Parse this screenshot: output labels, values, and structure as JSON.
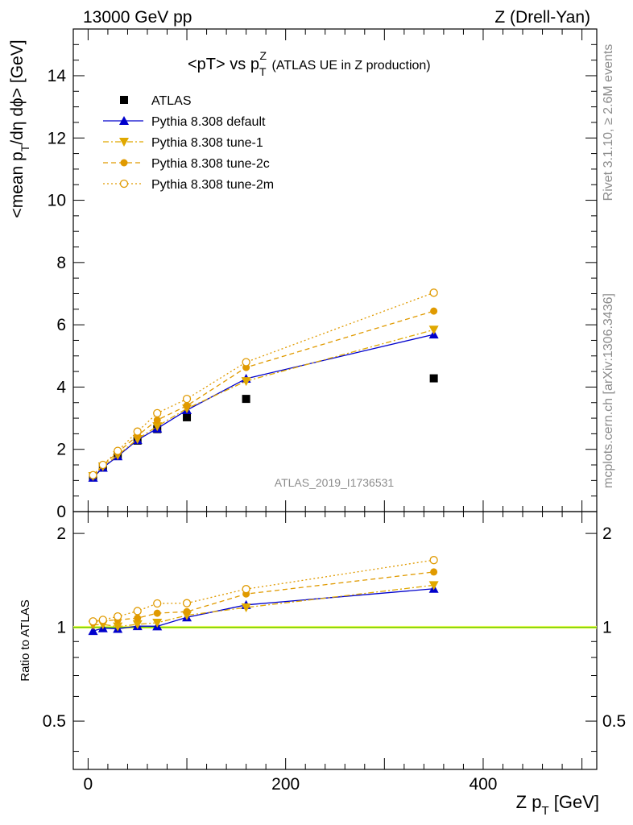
{
  "header": {
    "left": "13000 GeV pp",
    "right": "Z (Drell-Yan)"
  },
  "side": {
    "rivet": "Rivet 3.1.10, ≥ 2.6M events",
    "mcplots": "mcplots.cern.ch [arXiv:1306.3436]"
  },
  "main": {
    "title_prefix": "<pT> vs p",
    "title_sub": "T",
    "title_sup": "Z",
    "title_suffix": " (ATLAS UE in Z production)",
    "ylabel_a": "<mean p",
    "ylabel_sub": "T",
    "ylabel_b": "/dη dϕ> [GeV]",
    "analysis_id": "ATLAS_2019_I1736531",
    "y_ticks": [
      "0",
      "2",
      "4",
      "6",
      "8",
      "10",
      "12",
      "14"
    ]
  },
  "ratio": {
    "ylabel": "Ratio to ATLAS",
    "y_ticks": [
      "0.5",
      "1",
      "2"
    ]
  },
  "xaxis": {
    "label_a": "Z p",
    "label_sub": "T",
    "label_b": " [GeV]",
    "ticks": [
      "0",
      "200",
      "400"
    ]
  },
  "chart_data": {
    "type": "line",
    "x_units": "GeV",
    "xlim": [
      -15,
      515
    ],
    "ylim": [
      0,
      15.5
    ],
    "ratio_ylim_log": [
      0.35,
      2.35
    ],
    "x": [
      5,
      15,
      30,
      50,
      70,
      100,
      160,
      350
    ],
    "series": [
      {
        "name": "ATLAS",
        "color": "#000000",
        "style": "data",
        "values": [
          1.12,
          1.42,
          1.8,
          2.28,
          2.65,
          3.03,
          3.62,
          4.28
        ]
      },
      {
        "name": "Pythia 8.308 default",
        "color": "#0000cc",
        "style": "solid",
        "marker": "triangle-up",
        "values": [
          1.09,
          1.41,
          1.78,
          2.3,
          2.67,
          3.26,
          4.27,
          5.69
        ]
      },
      {
        "name": "Pythia 8.308 tune-1",
        "color": "#e0a800",
        "style": "dashdot",
        "marker": "triangle-down",
        "values": [
          1.14,
          1.45,
          1.81,
          2.33,
          2.74,
          3.31,
          4.19,
          5.84
        ]
      },
      {
        "name": "Pythia 8.308 tune-2c",
        "color": "#e09a00",
        "style": "dashed",
        "marker": "circle",
        "values": [
          1.16,
          1.49,
          1.9,
          2.44,
          2.94,
          3.4,
          4.63,
          6.44
        ]
      },
      {
        "name": "Pythia 8.308 tune-2m",
        "color": "#e09a00",
        "style": "dotted",
        "marker": "open-circle",
        "values": [
          1.17,
          1.5,
          1.95,
          2.57,
          3.16,
          3.62,
          4.8,
          7.03
        ]
      }
    ]
  }
}
